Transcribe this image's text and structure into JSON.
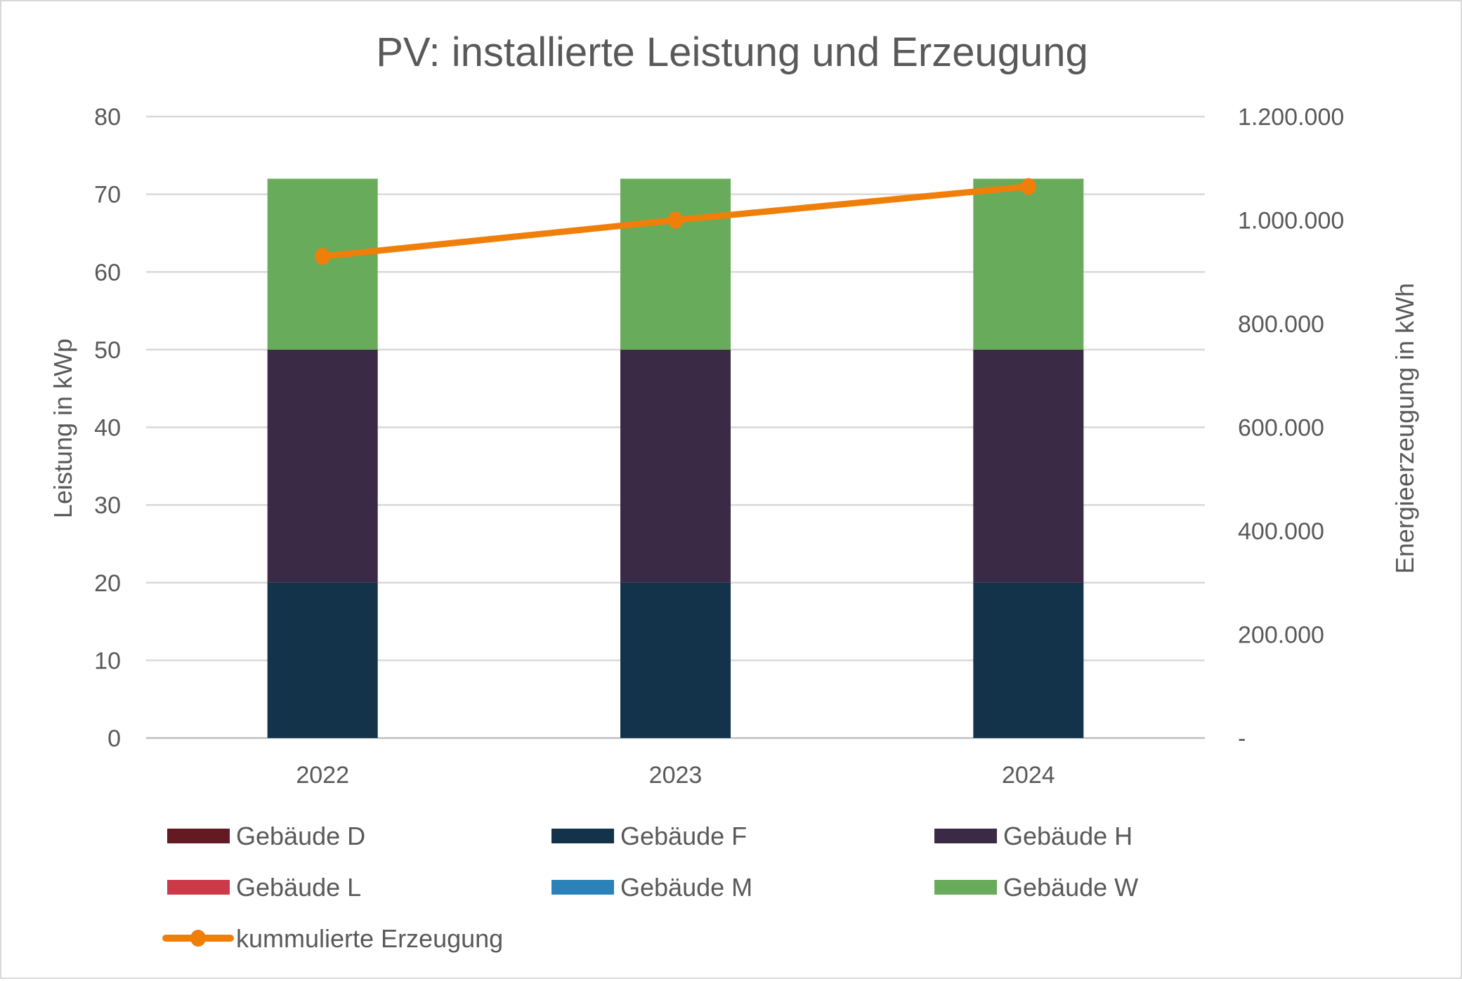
{
  "chart_data": {
    "type": "bar",
    "stacked": true,
    "title": "PV: installierte Leistung und Erzeugung",
    "categories": [
      "2022",
      "2023",
      "2024"
    ],
    "ylabel": "Leistung in kWp",
    "ylim": [
      0,
      80
    ],
    "yticks": [
      "0",
      "10",
      "20",
      "30",
      "40",
      "50",
      "60",
      "70",
      "80"
    ],
    "y2label": "Energieerzeugung in kWh",
    "y2lim": [
      0,
      1200000
    ],
    "y2ticks": [
      "-",
      "200.000",
      "400.000",
      "600.000",
      "800.000",
      "1.000.000",
      "1.200.000"
    ],
    "grid": true,
    "legend_position": "bottom",
    "series": [
      {
        "name": "Gebäude D",
        "type": "bar",
        "color": "#631a22",
        "values": [
          0,
          0,
          0
        ]
      },
      {
        "name": "Gebäude F",
        "type": "bar",
        "color": "#12334a",
        "values": [
          20,
          20,
          20
        ]
      },
      {
        "name": "Gebäude H",
        "type": "bar",
        "color": "#3a2a45",
        "values": [
          30,
          30,
          30
        ]
      },
      {
        "name": "Gebäude L",
        "type": "bar",
        "color": "#cc3a4a",
        "values": [
          0,
          0,
          0
        ]
      },
      {
        "name": "Gebäude M",
        "type": "bar",
        "color": "#2a82b8",
        "values": [
          0,
          0,
          0
        ]
      },
      {
        "name": "Gebäude W",
        "type": "bar",
        "color": "#68ab5a",
        "values": [
          22,
          22,
          22
        ]
      },
      {
        "name": "kummulierte Erzeugung",
        "type": "line",
        "axis": "secondary",
        "color": "#f07f0a",
        "values": [
          930000,
          1000000,
          1065000
        ]
      }
    ]
  }
}
